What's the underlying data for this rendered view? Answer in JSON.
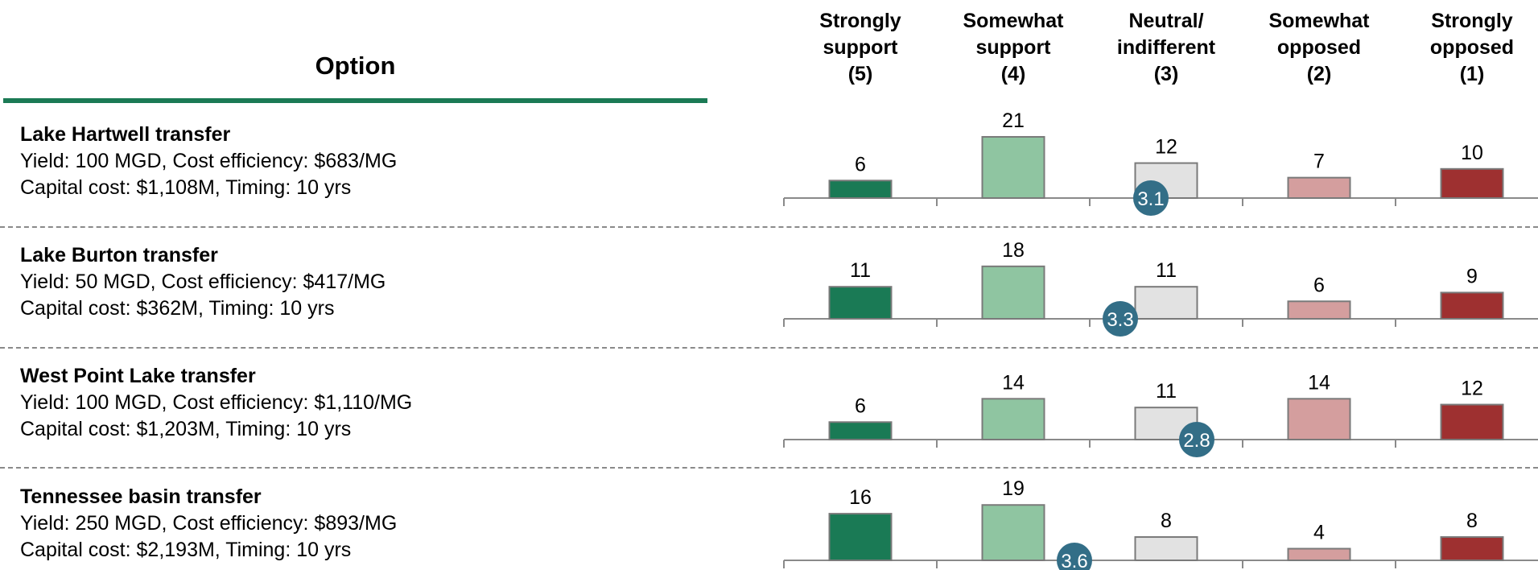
{
  "header": {
    "option_label": "Option",
    "columns": [
      "Strongly\nsupport\n(5)",
      "Somewhat\nsupport\n(4)",
      "Neutral/\nindifferent\n(3)",
      "Somewhat\nopposed\n(2)",
      "Strongly\nopposed\n(1)"
    ]
  },
  "colors": {
    "strongly_support": "#1a7a55",
    "somewhat_support": "#8fc5a1",
    "neutral": "#e2e2e2",
    "somewhat_opposed": "#d49e9e",
    "strongly_opposed": "#9e3030",
    "mean_marker": "#336e87",
    "header_rule": "#1b7a55"
  },
  "options": [
    {
      "title": "Lake Hartwell transfer",
      "line1": "Yield: 100 MGD, Cost efficiency: $683/MG",
      "line2": "Capital cost: $1,108M, Timing: 10 yrs"
    },
    {
      "title": "Lake Burton transfer",
      "line1": "Yield: 50 MGD, Cost efficiency: $417/MG",
      "line2": "Capital cost: $362M, Timing: 10 yrs"
    },
    {
      "title": "West Point Lake transfer",
      "line1": "Yield: 100 MGD, Cost efficiency: $1,110/MG",
      "line2": "Capital cost: $1,203M, Timing: 10 yrs"
    },
    {
      "title": "Tennessee basin transfer",
      "line1": "Yield: 250 MGD, Cost efficiency: $893/MG",
      "line2": "Capital cost: $2,193M, Timing: 10 yrs"
    }
  ],
  "chart_data": {
    "type": "bar",
    "categories": [
      "Strongly support (5)",
      "Somewhat support (4)",
      "Neutral/ indifferent (3)",
      "Somewhat opposed (2)",
      "Strongly opposed (1)"
    ],
    "scale_scores": [
      5,
      4,
      3,
      2,
      1
    ],
    "rows": [
      {
        "option": "Lake Hartwell transfer",
        "values": [
          6,
          21,
          12,
          7,
          10
        ],
        "mean": 3.1
      },
      {
        "option": "Lake Burton transfer",
        "values": [
          11,
          18,
          11,
          6,
          9
        ],
        "mean": 3.3
      },
      {
        "option": "West Point Lake transfer",
        "values": [
          6,
          14,
          11,
          14,
          12
        ],
        "mean": 2.8
      },
      {
        "option": "Tennessee basin transfer",
        "values": [
          16,
          19,
          8,
          4,
          8
        ],
        "mean": 3.6
      }
    ]
  }
}
